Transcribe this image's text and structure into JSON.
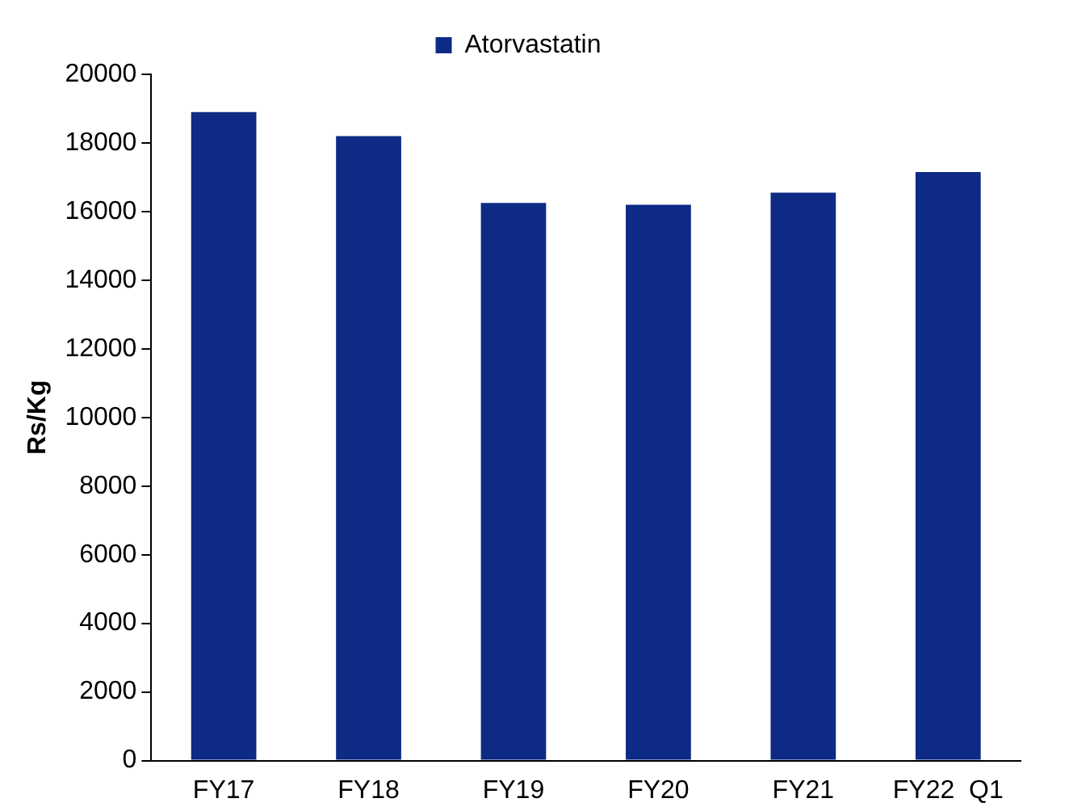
{
  "chart_data": {
    "type": "bar",
    "ylabel": "Rs/Kg",
    "categories": [
      "FY17",
      "FY18",
      "FY19",
      "FY20",
      "FY21",
      "FY22  Q1"
    ],
    "series": [
      {
        "name": "Atorvastatin",
        "color": "#0d2a85",
        "values": [
          18900,
          18200,
          16250,
          16200,
          16550,
          17150
        ]
      }
    ],
    "ylim": [
      0,
      20000
    ],
    "yticks": [
      0,
      2000,
      4000,
      6000,
      8000,
      10000,
      12000,
      14000,
      16000,
      18000,
      20000
    ],
    "grid": false,
    "legend": "top"
  }
}
